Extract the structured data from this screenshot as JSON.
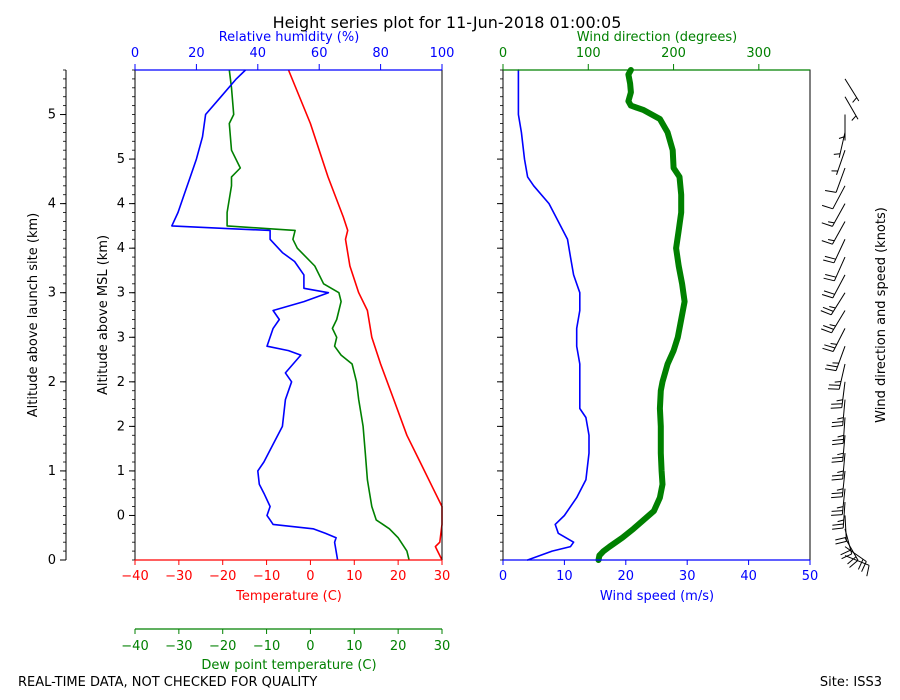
{
  "title": "Height series plot for 11-Jun-2018 01:00:05",
  "footer_left": "REAL-TIME DATA, NOT CHECKED FOR QUALITY",
  "footer_right": "Site: ISS3",
  "colors": {
    "temperature": "#ff0000",
    "rh": "#0000ff",
    "dewpoint": "#008000",
    "wind_speed": "#0000ff",
    "wind_dir": "#008000",
    "barbs": "#000000"
  },
  "labels": {
    "alt_launch": "Altitude above launch site (km)",
    "alt_msl": "Altitude above MSL (km)",
    "temperature": "Temperature (C)",
    "dewpoint": "Dew point temperature (C)",
    "rh": "Relative humidity (%)",
    "wind_speed": "Wind speed (m/s)",
    "wind_dir": "Wind direction (degrees)",
    "barbs": "Wind direction and speed (knots)"
  },
  "chart_data": [
    {
      "type": "line",
      "name": "thermo-panel",
      "ylim": [
        0,
        5.5
      ],
      "y_launch_ticks": [
        "0",
        "1",
        "2",
        "3",
        "4",
        "5"
      ],
      "y_launch_values": [
        0,
        1,
        2,
        3,
        4,
        5
      ],
      "y_msl_ticks": [
        "0",
        "1",
        "2",
        "2",
        "3",
        "3",
        "4",
        "4",
        "5"
      ],
      "y_msl_values": [
        0.5,
        1.0,
        1.5,
        2.0,
        2.5,
        3.0,
        3.5,
        4.0,
        4.5
      ],
      "temperature_axis": {
        "xlim": [
          -40,
          30
        ],
        "ticks": [
          "−40",
          "−30",
          "−20",
          "−10",
          "0",
          "10",
          "20",
          "30"
        ],
        "values": [
          -40,
          -30,
          -20,
          -10,
          0,
          10,
          20,
          30
        ]
      },
      "dewpoint_axis": {
        "xlim": [
          -40,
          30
        ],
        "ticks": [
          "−40",
          "−30",
          "−20",
          "−10",
          "0",
          "10",
          "20",
          "30"
        ],
        "values": [
          -40,
          -30,
          -20,
          -10,
          0,
          10,
          20,
          30
        ]
      },
      "rh_axis": {
        "xlim": [
          0,
          100
        ],
        "ticks": [
          "0",
          "20",
          "40",
          "60",
          "80",
          "100"
        ],
        "values": [
          0,
          20,
          40,
          60,
          80,
          100
        ]
      },
      "series": [
        {
          "name": "Temperature",
          "axis": "temperature",
          "points": [
            [
              30,
              0
            ],
            [
              29,
              0.1
            ],
            [
              28.5,
              0.15
            ],
            [
              29.5,
              0.2
            ],
            [
              30,
              0.4
            ],
            [
              30,
              0.6
            ],
            [
              28,
              0.8
            ],
            [
              25,
              1.1
            ],
            [
              22,
              1.4
            ],
            [
              19,
              1.8
            ],
            [
              16,
              2.2
            ],
            [
              14,
              2.5
            ],
            [
              13,
              2.8
            ],
            [
              11,
              3.0
            ],
            [
              9,
              3.3
            ],
            [
              8,
              3.6
            ],
            [
              8.5,
              3.7
            ],
            [
              7.5,
              3.85
            ],
            [
              4,
              4.3
            ],
            [
              0,
              4.9
            ],
            [
              -5,
              5.5
            ]
          ]
        },
        {
          "name": "Dew point",
          "axis": "dewpoint",
          "points": [
            [
              22.5,
              0
            ],
            [
              22,
              0.1
            ],
            [
              20,
              0.25
            ],
            [
              18,
              0.35
            ],
            [
              15,
              0.45
            ],
            [
              14,
              0.6
            ],
            [
              13.5,
              0.75
            ],
            [
              13,
              0.9
            ],
            [
              12.5,
              1.2
            ],
            [
              12,
              1.5
            ],
            [
              11,
              1.8
            ],
            [
              10.5,
              2.0
            ],
            [
              10,
              2.1
            ],
            [
              9.5,
              2.2
            ],
            [
              7,
              2.3
            ],
            [
              5.5,
              2.4
            ],
            [
              6,
              2.5
            ],
            [
              5,
              2.6
            ],
            [
              6,
              2.7
            ],
            [
              7,
              2.9
            ],
            [
              6.5,
              3.0
            ],
            [
              3,
              3.1
            ],
            [
              1,
              3.3
            ],
            [
              -3,
              3.5
            ],
            [
              -4,
              3.6
            ],
            [
              -3.5,
              3.7
            ],
            [
              -10,
              3.72
            ],
            [
              -19,
              3.75
            ],
            [
              -19,
              3.9
            ],
            [
              -18,
              4.2
            ],
            [
              -18,
              4.3
            ],
            [
              -16,
              4.4
            ],
            [
              -18,
              4.6
            ],
            [
              -18.5,
              4.9
            ],
            [
              -17.5,
              5.0
            ],
            [
              -18,
              5.3
            ],
            [
              -18.5,
              5.5
            ]
          ]
        },
        {
          "name": "Relative humidity",
          "axis": "rh",
          "points": [
            [
              66,
              0
            ],
            [
              65,
              0.2
            ],
            [
              65.5,
              0.25
            ],
            [
              62,
              0.3
            ],
            [
              58,
              0.35
            ],
            [
              45,
              0.4
            ],
            [
              44,
              0.45
            ],
            [
              43,
              0.5
            ],
            [
              44,
              0.6
            ],
            [
              42,
              0.75
            ],
            [
              40.5,
              0.85
            ],
            [
              40,
              1.0
            ],
            [
              42,
              1.1
            ],
            [
              45,
              1.3
            ],
            [
              48,
              1.5
            ],
            [
              49,
              1.8
            ],
            [
              51,
              2.0
            ],
            [
              49,
              2.1
            ],
            [
              54,
              2.3
            ],
            [
              50,
              2.35
            ],
            [
              43,
              2.4
            ],
            [
              45,
              2.6
            ],
            [
              47,
              2.7
            ],
            [
              45,
              2.8
            ],
            [
              55,
              2.9
            ],
            [
              63,
              3.0
            ],
            [
              55,
              3.05
            ],
            [
              55,
              3.2
            ],
            [
              52,
              3.35
            ],
            [
              48,
              3.45
            ],
            [
              44,
              3.6
            ],
            [
              44,
              3.7
            ],
            [
              30,
              3.72
            ],
            [
              12,
              3.75
            ],
            [
              14,
              3.9
            ],
            [
              16,
              4.1
            ],
            [
              18,
              4.3
            ],
            [
              20,
              4.5
            ],
            [
              22,
              4.75
            ],
            [
              23,
              5.0
            ],
            [
              28,
              5.2
            ],
            [
              33,
              5.4
            ],
            [
              36,
              5.5
            ]
          ]
        }
      ]
    },
    {
      "type": "line",
      "name": "wind-panel",
      "ylim": [
        0,
        5.5
      ],
      "speed_axis": {
        "xlim": [
          0,
          50
        ],
        "ticks": [
          "0",
          "10",
          "20",
          "30",
          "40",
          "50"
        ],
        "values": [
          0,
          10,
          20,
          30,
          40,
          50
        ]
      },
      "direction_axis": {
        "xlim": [
          0,
          360
        ],
        "ticks": [
          "0",
          "100",
          "200",
          "300"
        ],
        "values": [
          0,
          100,
          200,
          300
        ]
      },
      "series": [
        {
          "name": "Wind speed",
          "axis": "speed",
          "points": [
            [
              4,
              0
            ],
            [
              8,
              0.1
            ],
            [
              11,
              0.15
            ],
            [
              11.5,
              0.2
            ],
            [
              9,
              0.3
            ],
            [
              8.5,
              0.4
            ],
            [
              10,
              0.5
            ],
            [
              12,
              0.7
            ],
            [
              13.5,
              0.9
            ],
            [
              14,
              1.2
            ],
            [
              14,
              1.4
            ],
            [
              13.5,
              1.6
            ],
            [
              12.5,
              1.7
            ],
            [
              12.5,
              2.0
            ],
            [
              12.5,
              2.2
            ],
            [
              12,
              2.4
            ],
            [
              12,
              2.6
            ],
            [
              12.5,
              2.8
            ],
            [
              12.5,
              3.0
            ],
            [
              11.5,
              3.2
            ],
            [
              11,
              3.4
            ],
            [
              10.5,
              3.6
            ],
            [
              9,
              3.8
            ],
            [
              7.5,
              4.0
            ],
            [
              5,
              4.2
            ],
            [
              4,
              4.3
            ],
            [
              3.5,
              4.5
            ],
            [
              3,
              4.8
            ],
            [
              2.5,
              5.0
            ],
            [
              2.5,
              5.3
            ],
            [
              2.5,
              5.5
            ]
          ]
        },
        {
          "name": "Wind direction",
          "axis": "direction",
          "points": [
            [
              112,
              0
            ],
            [
              113,
              0.05
            ],
            [
              118,
              0.1
            ],
            [
              125,
              0.15
            ],
            [
              140,
              0.25
            ],
            [
              153,
              0.35
            ],
            [
              165,
              0.45
            ],
            [
              177,
              0.55
            ],
            [
              184,
              0.7
            ],
            [
              187,
              0.85
            ],
            [
              186,
              1.0
            ],
            [
              185,
              1.2
            ],
            [
              185,
              1.5
            ],
            [
              184,
              1.7
            ],
            [
              185,
              1.9
            ],
            [
              187,
              2.0
            ],
            [
              193,
              2.2
            ],
            [
              200,
              2.35
            ],
            [
              205,
              2.5
            ],
            [
              209,
              2.7
            ],
            [
              213,
              2.9
            ],
            [
              210,
              3.1
            ],
            [
              206,
              3.3
            ],
            [
              203,
              3.5
            ],
            [
              206,
              3.7
            ],
            [
              209,
              3.9
            ],
            [
              209,
              4.1
            ],
            [
              207,
              4.3
            ],
            [
              200,
              4.4
            ],
            [
              199,
              4.6
            ],
            [
              193,
              4.8
            ],
            [
              184,
              4.95
            ],
            [
              165,
              5.05
            ],
            [
              150,
              5.1
            ],
            [
              147,
              5.15
            ],
            [
              150,
              5.25
            ],
            [
              149,
              5.35
            ],
            [
              147,
              5.45
            ],
            [
              150,
              5.5
            ]
          ]
        }
      ]
    },
    {
      "type": "barbs",
      "name": "wind-barbs",
      "series": [
        {
          "name": "Wind barbs",
          "points": [
            [
              0.05,
              112,
              10
            ],
            [
              0.15,
              125,
              22
            ],
            [
              0.25,
              150,
              20
            ],
            [
              0.35,
              165,
              19
            ],
            [
              0.5,
              177,
              21
            ],
            [
              0.65,
              184,
              24
            ],
            [
              0.8,
              186,
              26
            ],
            [
              1.0,
              186,
              27
            ],
            [
              1.2,
              185,
              27
            ],
            [
              1.4,
              185,
              26
            ],
            [
              1.6,
              184,
              25
            ],
            [
              1.8,
              185,
              24
            ],
            [
              2.0,
              187,
              24
            ],
            [
              2.2,
              193,
              24
            ],
            [
              2.4,
              200,
              23
            ],
            [
              2.6,
              207,
              24
            ],
            [
              2.8,
              211,
              24
            ],
            [
              3.0,
              212,
              23
            ],
            [
              3.2,
              208,
              22
            ],
            [
              3.4,
              204,
              21
            ],
            [
              3.6,
              205,
              20
            ],
            [
              3.8,
              209,
              17
            ],
            [
              4.0,
              209,
              14
            ],
            [
              4.2,
              208,
              10
            ],
            [
              4.4,
              200,
              8
            ],
            [
              4.6,
              199,
              7
            ],
            [
              4.8,
              193,
              6
            ],
            [
              5.0,
              180,
              5
            ],
            [
              5.2,
              150,
              5
            ],
            [
              5.4,
              148,
              5
            ]
          ]
        }
      ]
    }
  ]
}
